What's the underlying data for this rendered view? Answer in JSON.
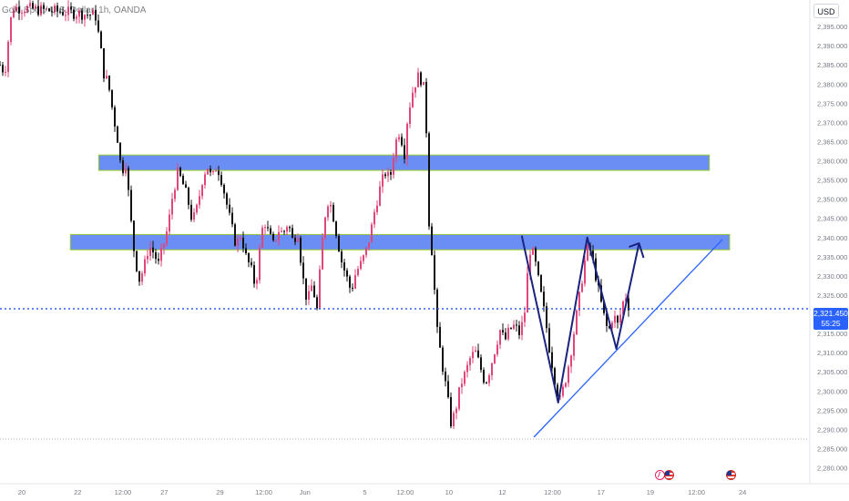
{
  "header": {
    "symbol_title": "Gold Spot / U.S. Dollar, 1h, OANDA",
    "currency": "USD"
  },
  "price_tag": {
    "price": "2,321.450",
    "countdown": "55:25"
  },
  "colors": {
    "up_candle": "#e0457b",
    "down_candle": "#111111",
    "zone_fill": "#6b8ef5",
    "zone_border": "#9acd32",
    "pattern_line": "#1a237e",
    "trend_line": "#2962ff",
    "price_line": "#2962ff",
    "axis_text": "#787b86"
  },
  "chart_data": {
    "type": "candlestick",
    "ylim": [
      2278,
      2400
    ],
    "y_ticks": [
      "2,280.000",
      "2,285.000",
      "2,290.000",
      "2,295.000",
      "2,300.000",
      "2,305.000",
      "2,310.000",
      "2,315.000",
      "2,320.000",
      "2,325.000",
      "2,330.000",
      "2,335.000",
      "2,340.000",
      "2,345.000",
      "2,350.000",
      "2,355.000",
      "2,360.000",
      "2,365.000",
      "2,370.000",
      "2,375.000",
      "2,380.000",
      "2,385.000",
      "2,390.000",
      "2,395.000"
    ],
    "y_tick_values": [
      2280,
      2285,
      2290,
      2295,
      2300,
      2305,
      2310,
      2315,
      2320,
      2325,
      2330,
      2335,
      2340,
      2345,
      2350,
      2355,
      2360,
      2365,
      2370,
      2375,
      2380,
      2385,
      2390,
      2395
    ],
    "x_ticks": [
      "20",
      "22",
      "12:00",
      "27",
      "29",
      "12:00",
      "Jun",
      "5",
      "12:00",
      "10",
      "12",
      "12:00",
      "17",
      "19",
      "12:00",
      "24"
    ],
    "x_tick_positions": [
      0.027,
      0.096,
      0.152,
      0.203,
      0.272,
      0.326,
      0.377,
      0.451,
      0.501,
      0.555,
      0.621,
      0.683,
      0.743,
      0.804,
      0.861,
      0.918
    ],
    "x_range": [
      0,
      1
    ],
    "current_price": 2321.45,
    "price_path": [
      [
        0.0,
        2385
      ],
      [
        0.006,
        2383
      ],
      [
        0.012,
        2395
      ],
      [
        0.016,
        2400
      ],
      [
        0.118,
        2398
      ],
      [
        0.124,
        2390
      ],
      [
        0.128,
        2383
      ],
      [
        0.134,
        2380
      ],
      [
        0.14,
        2372
      ],
      [
        0.146,
        2365
      ],
      [
        0.15,
        2357
      ],
      [
        0.156,
        2360
      ],
      [
        0.16,
        2348
      ],
      [
        0.166,
        2336
      ],
      [
        0.172,
        2329
      ],
      [
        0.178,
        2332
      ],
      [
        0.184,
        2338
      ],
      [
        0.19,
        2336
      ],
      [
        0.196,
        2333
      ],
      [
        0.202,
        2338
      ],
      [
        0.208,
        2343
      ],
      [
        0.214,
        2352
      ],
      [
        0.22,
        2357
      ],
      [
        0.226,
        2354
      ],
      [
        0.232,
        2350
      ],
      [
        0.238,
        2344
      ],
      [
        0.244,
        2348
      ],
      [
        0.25,
        2355
      ],
      [
        0.256,
        2359
      ],
      [
        0.262,
        2355
      ],
      [
        0.268,
        2359
      ],
      [
        0.274,
        2355
      ],
      [
        0.28,
        2349
      ],
      [
        0.286,
        2343
      ],
      [
        0.292,
        2338
      ],
      [
        0.298,
        2341
      ],
      [
        0.304,
        2335
      ],
      [
        0.31,
        2332
      ],
      [
        0.316,
        2327
      ],
      [
        0.32,
        2335
      ],
      [
        0.326,
        2345
      ],
      [
        0.332,
        2341
      ],
      [
        0.338,
        2338
      ],
      [
        0.344,
        2342
      ],
      [
        0.35,
        2341
      ],
      [
        0.356,
        2344
      ],
      [
        0.362,
        2339
      ],
      [
        0.368,
        2342
      ],
      [
        0.374,
        2330
      ],
      [
        0.38,
        2323
      ],
      [
        0.386,
        2328
      ],
      [
        0.392,
        2321
      ],
      [
        0.398,
        2338
      ],
      [
        0.404,
        2350
      ],
      [
        0.41,
        2348
      ],
      [
        0.416,
        2341
      ],
      [
        0.422,
        2334
      ],
      [
        0.428,
        2330
      ],
      [
        0.434,
        2326
      ],
      [
        0.44,
        2331
      ],
      [
        0.446,
        2333
      ],
      [
        0.452,
        2336
      ],
      [
        0.458,
        2341
      ],
      [
        0.464,
        2348
      ],
      [
        0.47,
        2353
      ],
      [
        0.476,
        2357
      ],
      [
        0.482,
        2355
      ],
      [
        0.488,
        2364
      ],
      [
        0.494,
        2368
      ],
      [
        0.5,
        2362
      ],
      [
        0.504,
        2372
      ],
      [
        0.51,
        2378
      ],
      [
        0.516,
        2382
      ],
      [
        0.522,
        2381
      ],
      [
        0.526,
        2376
      ],
      [
        0.53,
        2345
      ],
      [
        0.535,
        2334
      ],
      [
        0.54,
        2316
      ],
      [
        0.546,
        2308
      ],
      [
        0.552,
        2300
      ],
      [
        0.558,
        2291
      ],
      [
        0.564,
        2296
      ],
      [
        0.57,
        2302
      ],
      [
        0.576,
        2305
      ],
      [
        0.582,
        2309
      ],
      [
        0.588,
        2310
      ],
      [
        0.594,
        2306
      ],
      [
        0.6,
        2302
      ],
      [
        0.606,
        2306
      ],
      [
        0.612,
        2311
      ],
      [
        0.618,
        2316
      ],
      [
        0.624,
        2313
      ],
      [
        0.63,
        2316
      ],
      [
        0.636,
        2317
      ],
      [
        0.642,
        2315
      ],
      [
        0.648,
        2319
      ],
      [
        0.652,
        2330
      ],
      [
        0.656,
        2338
      ],
      [
        0.662,
        2333
      ],
      [
        0.668,
        2326
      ],
      [
        0.674,
        2319
      ],
      [
        0.68,
        2310
      ],
      [
        0.686,
        2303
      ],
      [
        0.692,
        2297
      ],
      [
        0.698,
        2302
      ],
      [
        0.704,
        2308
      ],
      [
        0.71,
        2316
      ],
      [
        0.716,
        2324
      ],
      [
        0.722,
        2333
      ],
      [
        0.728,
        2338
      ],
      [
        0.734,
        2333
      ],
      [
        0.74,
        2326
      ],
      [
        0.746,
        2320
      ],
      [
        0.752,
        2315
      ],
      [
        0.758,
        2320
      ],
      [
        0.764,
        2317
      ],
      [
        0.77,
        2323
      ],
      [
        0.774,
        2325
      ],
      [
        0.778,
        2321.45
      ]
    ],
    "zones": [
      {
        "x0": 0.122,
        "x1": 0.877,
        "y0": 2357.5,
        "y1": 2361.5
      },
      {
        "x0": 0.087,
        "x1": 0.902,
        "y0": 2336.8,
        "y1": 2340.8
      }
    ],
    "pattern": [
      [
        0.645,
        2340.5
      ],
      [
        0.69,
        2297
      ],
      [
        0.726,
        2340
      ],
      [
        0.762,
        2311
      ],
      [
        0.79,
        2338.5
      ]
    ],
    "arrow_head_at": [
      0.79,
      2338.5
    ],
    "trend_line": [
      [
        0.66,
        2288
      ],
      [
        0.893,
        2339.5
      ]
    ],
    "bottom_reference": 2287.5,
    "legend": "none",
    "grid": false
  }
}
